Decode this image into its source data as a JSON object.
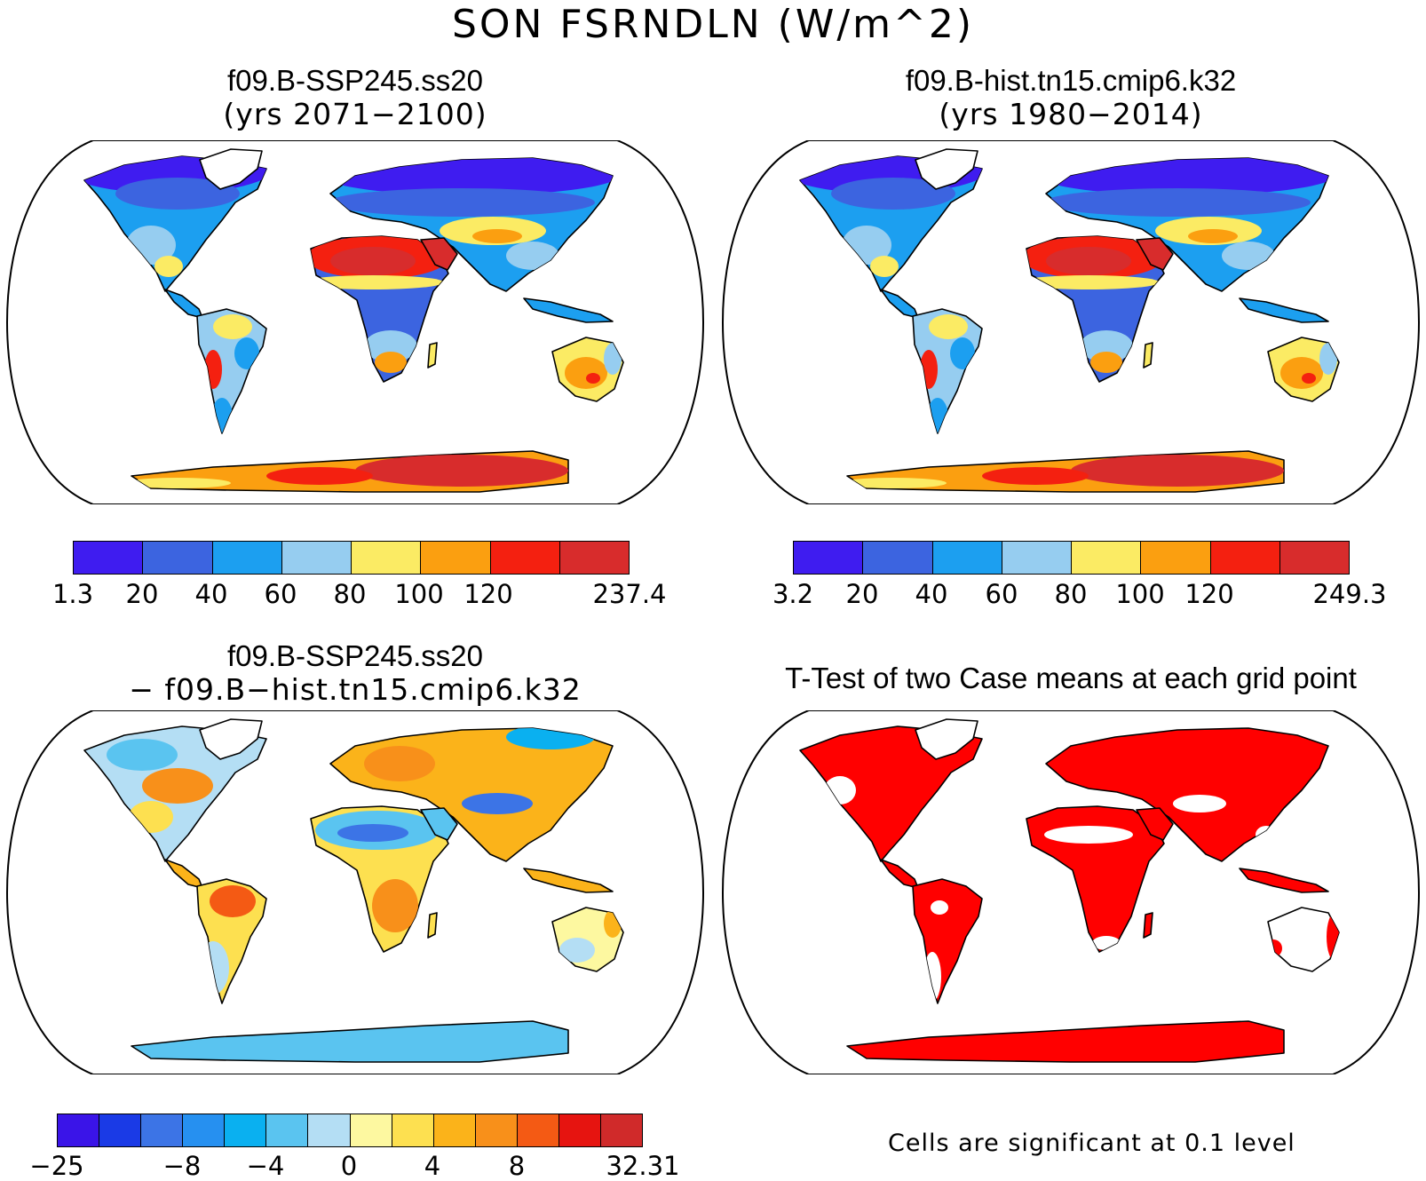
{
  "title": "SON FSRNDLN (W/m^2)",
  "panels": [
    {
      "title_line1": "f09.B-SSP245.ss20",
      "title_line2": "(yrs 2071−2100)",
      "colorbar": {
        "colors": [
          "#3f1cf0",
          "#3c64e0",
          "#1c9ff0",
          "#96cdf0",
          "#fbeb64",
          "#fb9f10",
          "#f42010",
          "#d82c2c"
        ],
        "ticks": [
          "1.3",
          "20",
          "40",
          "60",
          "80",
          "100",
          "120",
          "237.4"
        ]
      }
    },
    {
      "title_line1": "f09.B-hist.tn15.cmip6.k32",
      "title_line2": "(yrs 1980−2014)",
      "colorbar": {
        "colors": [
          "#3f1cf0",
          "#3c64e0",
          "#1c9ff0",
          "#96cdf0",
          "#fbeb64",
          "#fb9f10",
          "#f42010",
          "#d82c2c"
        ],
        "ticks": [
          "3.2",
          "20",
          "40",
          "60",
          "80",
          "100",
          "120",
          "249.3"
        ]
      }
    },
    {
      "title_line1": "f09.B-SSP245.ss20",
      "title_line2": "− f09.B−hist.tn15.cmip6.k32",
      "colorbar": {
        "colors": [
          "#3a14e8",
          "#1a3ae6",
          "#3c74e6",
          "#2690f0",
          "#0ab0f0",
          "#5ac4f0",
          "#b4def4",
          "#fdf8a0",
          "#fde050",
          "#fbb31a",
          "#f8901a",
          "#f45a14",
          "#e61410",
          "#d02a2a"
        ],
        "ticks": [
          "−25",
          "−8",
          "−4",
          "0",
          "4",
          "8",
          "32.31"
        ]
      }
    },
    {
      "title_line1": "T-Test of two Case means at each grid point",
      "note": "Cells are significant at 0.1 level",
      "significant_color": "#ff0000"
    }
  ]
}
